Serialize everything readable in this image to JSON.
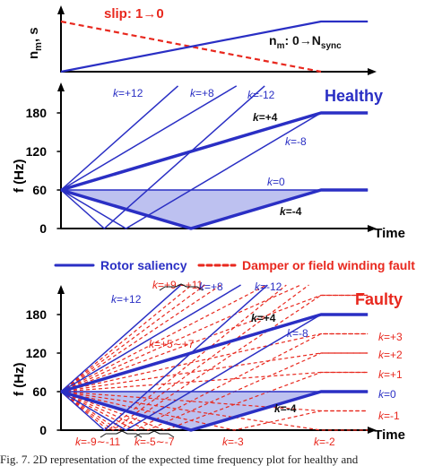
{
  "chart_data": [
    {
      "type": "line",
      "ylabel": "n_m, s",
      "series": [
        {
          "name": "slip: 1→0",
          "style": "dashed",
          "color": "#e8281e",
          "x": [
            0,
            1
          ],
          "y": [
            1,
            0
          ]
        },
        {
          "name": "n_m: 0→N_sync",
          "style": "solid",
          "color": "#2a2fc4",
          "x": [
            0,
            1,
            1.18
          ],
          "y": [
            0,
            1,
            1
          ]
        }
      ],
      "labels": {
        "slip": "slip: 1→0",
        "nm": "n",
        "nm_sub": "m",
        "nm_mid": ": 0→N",
        "nm_sub2": "sync",
        "ylabel_main": "n",
        "ylabel_sub": "m",
        "ylabel_tail": ", s"
      }
    },
    {
      "type": "line",
      "title": "Healthy",
      "ylabel": "f (Hz)",
      "xlabel": "Time",
      "yticks": [
        "0",
        "60",
        "120",
        "180"
      ],
      "ylim": [
        0,
        240
      ],
      "base_lines": [
        {
          "name": "k=+4",
          "x": [
            0,
            1,
            1.18
          ],
          "y": [
            60,
            180,
            180
          ],
          "thick": true
        },
        {
          "name": "k=0",
          "x": [
            0,
            1,
            1.18
          ],
          "y": [
            60,
            60,
            60
          ],
          "thick": false
        },
        {
          "name": "k=-4",
          "x": [
            0,
            0.5,
            1,
            1.18
          ],
          "y": [
            60,
            0,
            60,
            60
          ],
          "thick": true
        }
      ],
      "k_lines": [
        12,
        8,
        -12,
        -8
      ],
      "k_labels": [
        {
          "prefix": "k",
          "value": "=+12"
        },
        {
          "prefix": "k",
          "value": "=+8"
        },
        {
          "prefix": "k",
          "value": "=-12"
        },
        {
          "prefix": "k",
          "value": "=+4"
        },
        {
          "prefix": "k",
          "value": "=-8"
        },
        {
          "prefix": "k",
          "value": "=0"
        },
        {
          "prefix": "k",
          "value": "=-4"
        }
      ]
    },
    {
      "type": "legend",
      "entries": [
        {
          "label": "Rotor saliency",
          "style": "solid",
          "color": "#2a2fc4"
        },
        {
          "label": "Damper or field winding fault",
          "style": "dashed",
          "color": "#e8281e"
        }
      ]
    },
    {
      "type": "line",
      "title": "Faulty",
      "ylabel": "f (Hz)",
      "xlabel": "Time",
      "yticks": [
        "0",
        "60",
        "120",
        "180"
      ],
      "ylim": [
        0,
        240
      ],
      "base_lines": [
        {
          "name": "k=+4",
          "x": [
            0,
            1,
            1.18
          ],
          "y": [
            60,
            180,
            180
          ],
          "thick": true
        },
        {
          "name": "k=0",
          "x": [
            0,
            1,
            1.18
          ],
          "y": [
            60,
            60,
            60
          ],
          "thick": false
        },
        {
          "name": "k=-4",
          "x": [
            0,
            0.5,
            1,
            1.18
          ],
          "y": [
            60,
            0,
            60,
            60
          ],
          "thick": true
        }
      ],
      "blue_k_lines": [
        12,
        8,
        -12,
        -8
      ],
      "red_k_lines": [
        11,
        10,
        9,
        7,
        6,
        5,
        3,
        2,
        1,
        -1,
        -2,
        -3,
        -5,
        -6,
        -7,
        -9,
        -10,
        -11
      ],
      "k_labels": [
        {
          "prefix": "k",
          "value": "=+9∼+11"
        },
        {
          "prefix": "k",
          "value": "=+12"
        },
        {
          "prefix": "k",
          "value": "=+8"
        },
        {
          "prefix": "k",
          "value": "=-12"
        },
        {
          "prefix": "k",
          "value": "=+5∼+7"
        },
        {
          "prefix": "k",
          "value": "=+4"
        },
        {
          "prefix": "k",
          "value": "=-8"
        },
        {
          "prefix": "k",
          "value": "=+3"
        },
        {
          "prefix": "k",
          "value": "=+2"
        },
        {
          "prefix": "k",
          "value": "=+1"
        },
        {
          "prefix": "k",
          "value": "=0"
        },
        {
          "prefix": "k",
          "value": "=-4"
        },
        {
          "prefix": "k",
          "value": "=-1"
        },
        {
          "prefix": "k",
          "value": "=-9∼-11"
        },
        {
          "prefix": "k",
          "value": "=-5∼-7"
        },
        {
          "prefix": "k",
          "value": "=-3"
        },
        {
          "prefix": "k",
          "value": "=-2"
        }
      ]
    }
  ],
  "caption": "Fig. 7.  2D representation of the expected time frequency plot for healthy and"
}
